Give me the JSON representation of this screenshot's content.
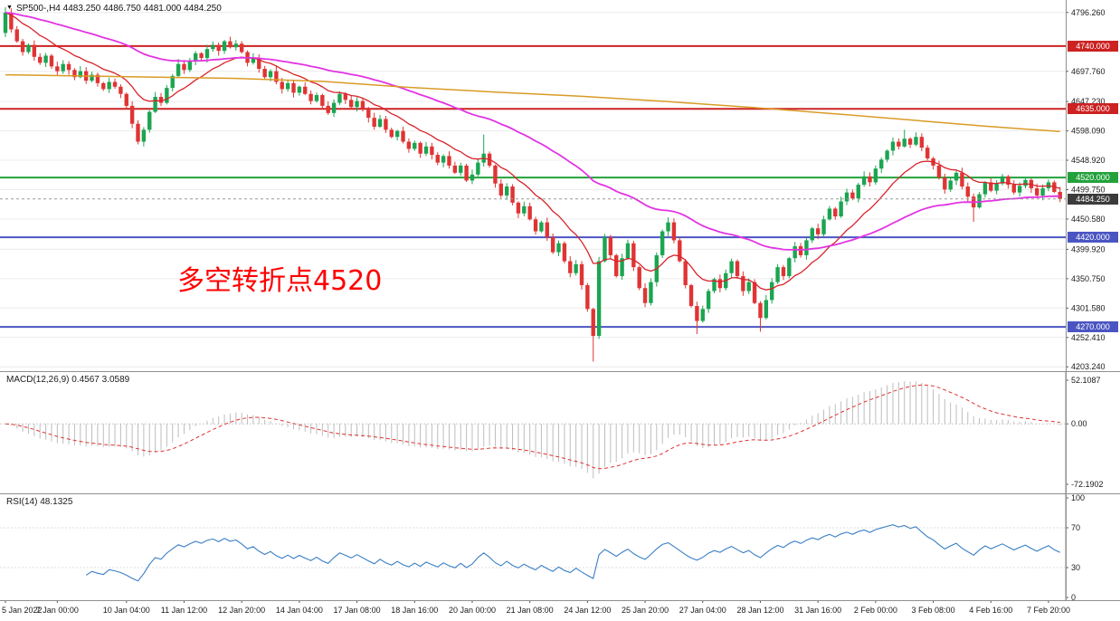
{
  "header": {
    "title": "SP500-,H4 4483.250 4486.750 4481.000 4484.250"
  },
  "annotation": {
    "text": "多空转折点4520",
    "color": "#ff0000"
  },
  "price_axis": {
    "ticks": [
      {
        "price": 4796.26,
        "label": "4796.260"
      },
      {
        "price": 4697.76,
        "label": "4697.760"
      },
      {
        "price": 4647.23,
        "label": "4647.230"
      },
      {
        "price": 4598.09,
        "label": "4598.090"
      },
      {
        "price": 4548.92,
        "label": "4548.920"
      },
      {
        "price": 4499.75,
        "label": "4499.750"
      },
      {
        "price": 4450.58,
        "label": "4450.580"
      },
      {
        "price": 4399.92,
        "label": "4399.920"
      },
      {
        "price": 4350.75,
        "label": "4350.750"
      },
      {
        "price": 4301.58,
        "label": "4301.580"
      },
      {
        "price": 4252.41,
        "label": "4252.410"
      },
      {
        "price": 4203.24,
        "label": "4203.240"
      }
    ]
  },
  "levels": [
    {
      "price": 4740.0,
      "label": "4740.000",
      "color": "#cc2222"
    },
    {
      "price": 4635.0,
      "label": "4635.000",
      "color": "#cc2222"
    },
    {
      "price": 4520.0,
      "label": "4520.000",
      "color": "#23a23c"
    },
    {
      "price": 4420.0,
      "label": "4420.000",
      "color": "#4b55c2"
    },
    {
      "price": 4270.0,
      "label": "4270.000",
      "color": "#4b55c2"
    }
  ],
  "current_price": {
    "price": 4484.25,
    "label": "4484.250",
    "badge_color": "#3b3b3b",
    "line_color": "#999999"
  },
  "macd_panel": {
    "label": "MACD(12,26,9)",
    "value_main": "0.4567",
    "value_signal": "3.0589",
    "ticks": [
      {
        "v": 52.1087,
        "label": "52.1087"
      },
      {
        "v": 0,
        "label": "0.00"
      },
      {
        "v": -72.1902,
        "label": "-72.1902"
      }
    ],
    "range": {
      "min": -72.1902,
      "max": 52.1087
    },
    "histogram_color": "#bdbdbd",
    "signal_color": "#e03131"
  },
  "rsi_panel": {
    "label": "RSI(14)",
    "value": "48.1325",
    "ticks": [
      {
        "v": 100,
        "label": "100"
      },
      {
        "v": 70,
        "label": "70"
      },
      {
        "v": 30,
        "label": "30"
      },
      {
        "v": 0,
        "label": "0"
      }
    ],
    "line_color": "#3a7ec4",
    "range": {
      "min": 0,
      "max": 100
    }
  },
  "time_axis": {
    "labels": [
      {
        "text": "5 Jan 2022",
        "bar": 0
      },
      {
        "text": "7 Jan 00:00",
        "bar": 9
      },
      {
        "text": "10 Jan 04:00",
        "bar": 21
      },
      {
        "text": "11 Jan 12:00",
        "bar": 31
      },
      {
        "text": "12 Jan 20:00",
        "bar": 41
      },
      {
        "text": "14 Jan 04:00",
        "bar": 51
      },
      {
        "text": "17 Jan 08:00",
        "bar": 61
      },
      {
        "text": "18 Jan 16:00",
        "bar": 71
      },
      {
        "text": "20 Jan 00:00",
        "bar": 81
      },
      {
        "text": "21 Jan 08:00",
        "bar": 91
      },
      {
        "text": "24 Jan 12:00",
        "bar": 101
      },
      {
        "text": "25 Jan 20:00",
        "bar": 111
      },
      {
        "text": "27 Jan 04:00",
        "bar": 121
      },
      {
        "text": "28 Jan 12:00",
        "bar": 131
      },
      {
        "text": "31 Jan 16:00",
        "bar": 141
      },
      {
        "text": "2 Feb 00:00",
        "bar": 151
      },
      {
        "text": "3 Feb 08:00",
        "bar": 161
      },
      {
        "text": "4 Feb 16:00",
        "bar": 171
      },
      {
        "text": "7 Feb 20:00",
        "bar": 181
      }
    ]
  },
  "chart_data": {
    "type": "candlestick",
    "symbol": "SP500-",
    "timeframe": "H4",
    "title": "SP500-,H4",
    "price_range": {
      "min": 4196,
      "max": 4805
    },
    "first_open": 4762,
    "closes": [
      4796,
      4768,
      4748,
      4730,
      4742,
      4722,
      4712,
      4724,
      4706,
      4698,
      4710,
      4700,
      4688,
      4698,
      4682,
      4692,
      4678,
      4668,
      4680,
      4672,
      4660,
      4640,
      4610,
      4580,
      4600,
      4630,
      4655,
      4645,
      4670,
      4690,
      4710,
      4700,
      4715,
      4728,
      4720,
      4735,
      4742,
      4732,
      4748,
      4738,
      4744,
      4730,
      4712,
      4720,
      4702,
      4688,
      4698,
      4680,
      4668,
      4678,
      4662,
      4672,
      4660,
      4648,
      4658,
      4640,
      4628,
      4645,
      4660,
      4650,
      4638,
      4648,
      4635,
      4620,
      4605,
      4618,
      4600,
      4588,
      4598,
      4580,
      4568,
      4578,
      4560,
      4572,
      4558,
      4545,
      4556,
      4540,
      4528,
      4540,
      4515,
      4525,
      4545,
      4560,
      4540,
      4510,
      4490,
      4505,
      4478,
      4460,
      4472,
      4450,
      4430,
      4445,
      4420,
      4395,
      4410,
      4380,
      4360,
      4375,
      4340,
      4300,
      4255,
      4380,
      4420,
      4390,
      4355,
      4385,
      4410,
      4370,
      4335,
      4310,
      4345,
      4390,
      4430,
      4445,
      4415,
      4380,
      4340,
      4305,
      4280,
      4300,
      4330,
      4350,
      4335,
      4360,
      4380,
      4355,
      4330,
      4345,
      4310,
      4285,
      4315,
      4345,
      4370,
      4355,
      4385,
      4405,
      4390,
      4415,
      4435,
      4425,
      4450,
      4468,
      4455,
      4480,
      4495,
      4485,
      4508,
      4522,
      4512,
      4535,
      4550,
      4565,
      4580,
      4572,
      4585,
      4575,
      4588,
      4570,
      4552,
      4540,
      4520,
      4500,
      4515,
      4528,
      4505,
      4488,
      4470,
      4492,
      4512,
      4498,
      4510,
      4522,
      4508,
      4495,
      4506,
      4516,
      4502,
      4490,
      4502,
      4512,
      4496,
      4484.25
    ],
    "wick_overrides": {
      "0": {
        "high": 4805,
        "low": 4755
      },
      "83": {
        "high": 4592
      },
      "102": {
        "low": 4212
      },
      "120": {
        "low": 4258
      },
      "131": {
        "low": 4262
      },
      "156": {
        "high": 4600
      },
      "168": {
        "low": 4446
      }
    },
    "last_bar_ohlc": {
      "open": 4483.25,
      "high": 4486.75,
      "low": 4481.0,
      "close": 4484.25
    },
    "up_color": "#1ba551",
    "down_color": "#e03434",
    "moving_averages": [
      {
        "name": "ma-fast",
        "type": "ema",
        "period": 13,
        "color": "#d8232a",
        "width": 1.3
      },
      {
        "name": "ma-mid",
        "type": "ema",
        "period": 55,
        "color": "#e233e2",
        "width": 1.8
      },
      {
        "name": "ma-slow",
        "type": "points",
        "color": "#d99b26",
        "width": 1.5,
        "points": [
          [
            0,
            4692
          ],
          [
            20,
            4689
          ],
          [
            40,
            4686
          ],
          [
            55,
            4681
          ],
          [
            70,
            4671
          ],
          [
            85,
            4663
          ],
          [
            100,
            4656
          ],
          [
            115,
            4647
          ],
          [
            130,
            4637
          ],
          [
            145,
            4626
          ],
          [
            160,
            4614
          ],
          [
            170,
            4606
          ],
          [
            183,
            4597
          ]
        ]
      }
    ],
    "indicators": {
      "macd": {
        "fast": 12,
        "slow": 26,
        "signal": 9,
        "shown_values": [
          0.4567,
          3.0589
        ]
      },
      "rsi": {
        "period": 14,
        "shown_value": 48.1325
      }
    }
  }
}
